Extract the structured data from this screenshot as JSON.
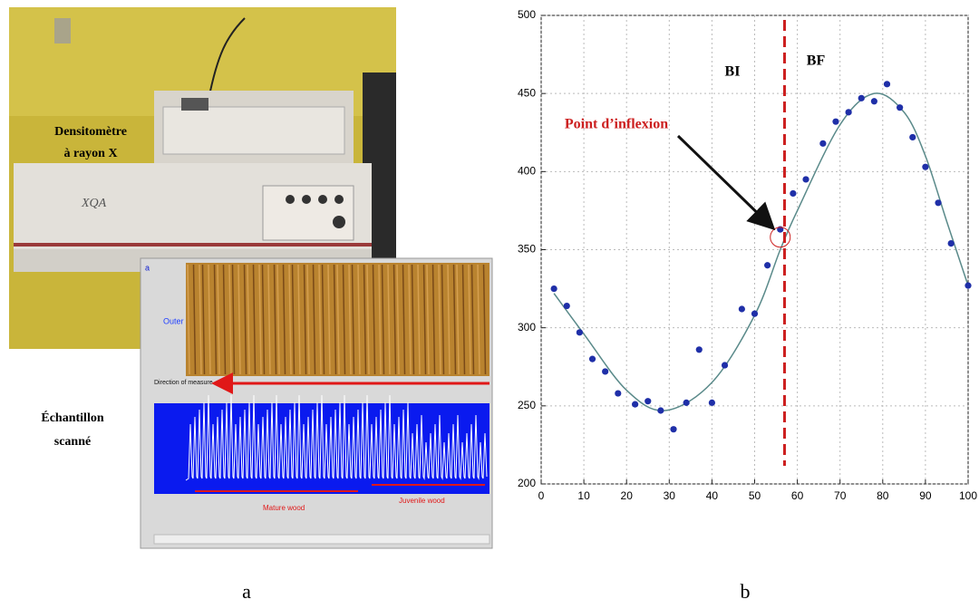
{
  "panel_a": {
    "device_label": [
      "Densitomètre",
      "à rayon X"
    ],
    "sample_label": [
      "Échantillon",
      "scanné"
    ],
    "inset_texts": [
      "a",
      "Outer",
      "Direction of measure",
      "Mature wood",
      "Juvenile wood"
    ],
    "caption": "a"
  },
  "chart_data": {
    "type": "scatter",
    "caption": "b",
    "series": [
      {
        "mode": "marker",
        "color": "#1f2fa8",
        "x": [
          3,
          6,
          9,
          12,
          15,
          18,
          22,
          25,
          28,
          31,
          34,
          37,
          40,
          43,
          47,
          50,
          53,
          56,
          59,
          62,
          66,
          69,
          72,
          75,
          78,
          81,
          84,
          87,
          90,
          93,
          96,
          100
        ],
        "values": [
          325,
          314,
          297,
          280,
          272,
          258,
          251,
          253,
          247,
          235,
          252,
          286,
          252,
          276,
          312,
          309,
          340,
          363,
          386,
          395,
          418,
          432,
          438,
          447,
          445,
          456,
          441,
          422,
          403,
          380,
          354,
          327
        ]
      },
      {
        "mode": "line",
        "color": "#5a8a8a",
        "x": [
          3,
          10,
          20,
          29,
          40,
          50,
          56,
          60,
          70,
          78,
          85,
          90,
          95,
          100
        ],
        "values": [
          322,
          296,
          260,
          247,
          265,
          308,
          350,
          375,
          430,
          450,
          438,
          410,
          368,
          327
        ]
      }
    ],
    "inflection_line": {
      "x": 57,
      "color": "#cc1f1f"
    },
    "inflection_point": {
      "x": 56,
      "y": 358
    },
    "annotations": [
      "BI",
      "BF",
      "Point d’inflexion"
    ],
    "xlim": [
      0,
      100
    ],
    "xticks": [
      0,
      10,
      20,
      30,
      40,
      50,
      60,
      70,
      80,
      90,
      100
    ],
    "ylim": [
      200,
      500
    ],
    "yticks": [
      200,
      250,
      300,
      350,
      400,
      450,
      500
    ],
    "grid": true
  }
}
